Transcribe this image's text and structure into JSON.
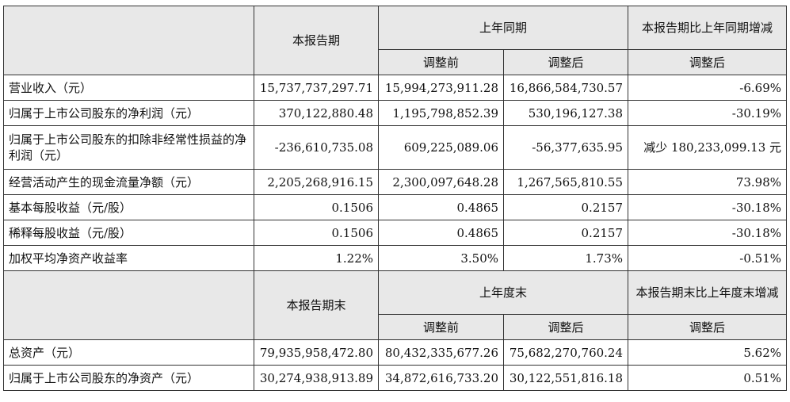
{
  "section1": {
    "header": {
      "current_period": "本报告期",
      "prior_period": "上年同期",
      "change": "本报告期比上年同期增减",
      "before_adjust": "调整前",
      "after_adjust": "调整后",
      "change_after": "调整后"
    },
    "rows": [
      {
        "label": "营业收入（元）",
        "current": "15,737,737,297.71",
        "before": "15,994,273,911.28",
        "after": "16,866,584,730.57",
        "change": "-6.69%"
      },
      {
        "label": "归属于上市公司股东的净利润（元）",
        "current": "370,122,880.48",
        "before": "1,195,798,852.39",
        "after": "530,196,127.38",
        "change": "-30.19%"
      },
      {
        "label": "归属于上市公司股东的扣除非经常性损益的净利润（元）",
        "current": "-236,610,735.08",
        "before": "609,225,089.06",
        "after": "-56,377,635.95",
        "change": "减少 180,233,099.13 元"
      },
      {
        "label": "经营活动产生的现金流量净额（元）",
        "current": "2,205,268,916.15",
        "before": "2,300,097,648.28",
        "after": "1,267,565,810.55",
        "change": "73.98%"
      },
      {
        "label": "基本每股收益（元/股）",
        "current": "0.1506",
        "before": "0.4865",
        "after": "0.2157",
        "change": "-30.18%"
      },
      {
        "label": "稀释每股收益（元/股）",
        "current": "0.1506",
        "before": "0.4865",
        "after": "0.2157",
        "change": "-30.18%"
      },
      {
        "label": "加权平均净资产收益率",
        "current": "1.22%",
        "before": "3.50%",
        "after": "1.73%",
        "change": "-0.51%"
      }
    ]
  },
  "section2": {
    "header": {
      "current_period": "本报告期末",
      "prior_period": "上年度末",
      "change": "本报告期末比上年度末增减",
      "before_adjust": "调整前",
      "after_adjust": "调整后",
      "change_after": "调整后"
    },
    "rows": [
      {
        "label": "总资产（元）",
        "current": "79,935,958,472.80",
        "before": "80,432,335,677.26",
        "after": "75,682,270,760.24",
        "change": "5.62%"
      },
      {
        "label": "归属于上市公司股东的净资产（元）",
        "current": "30,274,938,913.89",
        "before": "34,872,616,733.20",
        "after": "30,122,551,816.18",
        "change": "0.51%"
      }
    ]
  },
  "colors": {
    "header_bg": "#e8e8e8",
    "border": "#333333",
    "text": "#111111"
  }
}
